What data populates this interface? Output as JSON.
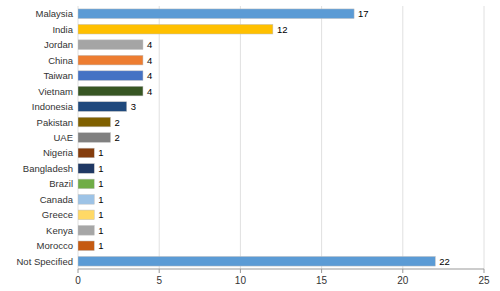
{
  "chart_data": {
    "type": "bar",
    "orientation": "horizontal",
    "categories": [
      "Malaysia",
      "India",
      "Jordan",
      "China",
      "Taiwan",
      "Vietnam",
      "Indonesia",
      "Pakistan",
      "UAE",
      "Nigeria",
      "Bangladesh",
      "Brazil",
      "Canada",
      "Greece",
      "Kenya",
      "Morocco",
      "Not Specified"
    ],
    "values": [
      17,
      12,
      4,
      4,
      4,
      4,
      3,
      2,
      2,
      1,
      1,
      1,
      1,
      1,
      1,
      1,
      22
    ],
    "colors": [
      "#5B9BD5",
      "#FFC000",
      "#A5A5A5",
      "#ED7D31",
      "#4472C4",
      "#375623",
      "#1F497D",
      "#7F6000",
      "#808080",
      "#843C0C",
      "#1F3864",
      "#70AD47",
      "#9DC3E6",
      "#FFD966",
      "#A6A6A6",
      "#C55A11",
      "#5B9BD5"
    ],
    "xlim": [
      0,
      25
    ],
    "xticks": [
      0,
      5,
      10,
      15,
      20,
      25
    ],
    "grid": true,
    "data_labels": true
  }
}
